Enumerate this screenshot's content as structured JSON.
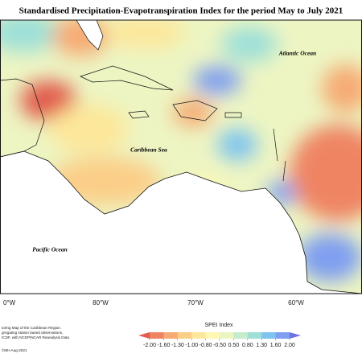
{
  "title": "Standardised Precipitation-Evapotranspiration Index for the period May to July 2021",
  "labels": {
    "atlantic": "Atlantic Ocean",
    "caribbean": "Caribbean Sea",
    "pacific": "Pacific Ocean"
  },
  "longitudes": [
    "0°W",
    "80°W",
    "70°W",
    "60°W"
  ],
  "footer": [
    "toring Map of the Caribbean Region.",
    "gregating station based observations,",
    "ICDF, with NCEP/NCAR Reanalysis Data",
    "©MH Aug-2021"
  ],
  "legend": {
    "title": "SPEI Index",
    "ticks": [
      {
        "value": -2,
        "label": "-2.00"
      },
      {
        "value": -1.6,
        "label": "-1.60"
      },
      {
        "value": -1.3,
        "label": "-1.30"
      },
      {
        "value": -1,
        "label": "-1.00"
      },
      {
        "value": -0.8,
        "label": "-0.80"
      },
      {
        "value": -0.5,
        "label": "-0.50"
      },
      {
        "value": 0.5,
        "label": "0.50"
      },
      {
        "value": 0.8,
        "label": "0.80"
      },
      {
        "value": 1.3,
        "label": "1.30"
      },
      {
        "value": 1.6,
        "label": "1.60"
      },
      {
        "value": 2,
        "label": "2.00"
      }
    ],
    "colors": [
      "#e15b4e",
      "#ef8463",
      "#f6ab75",
      "#fbce88",
      "#fde79a",
      "#fff7b4",
      "#eaf5c2",
      "#c6eccb",
      "#9ee0d8",
      "#7ec4ee",
      "#7f9ff0",
      "#6f73e6"
    ]
  }
}
